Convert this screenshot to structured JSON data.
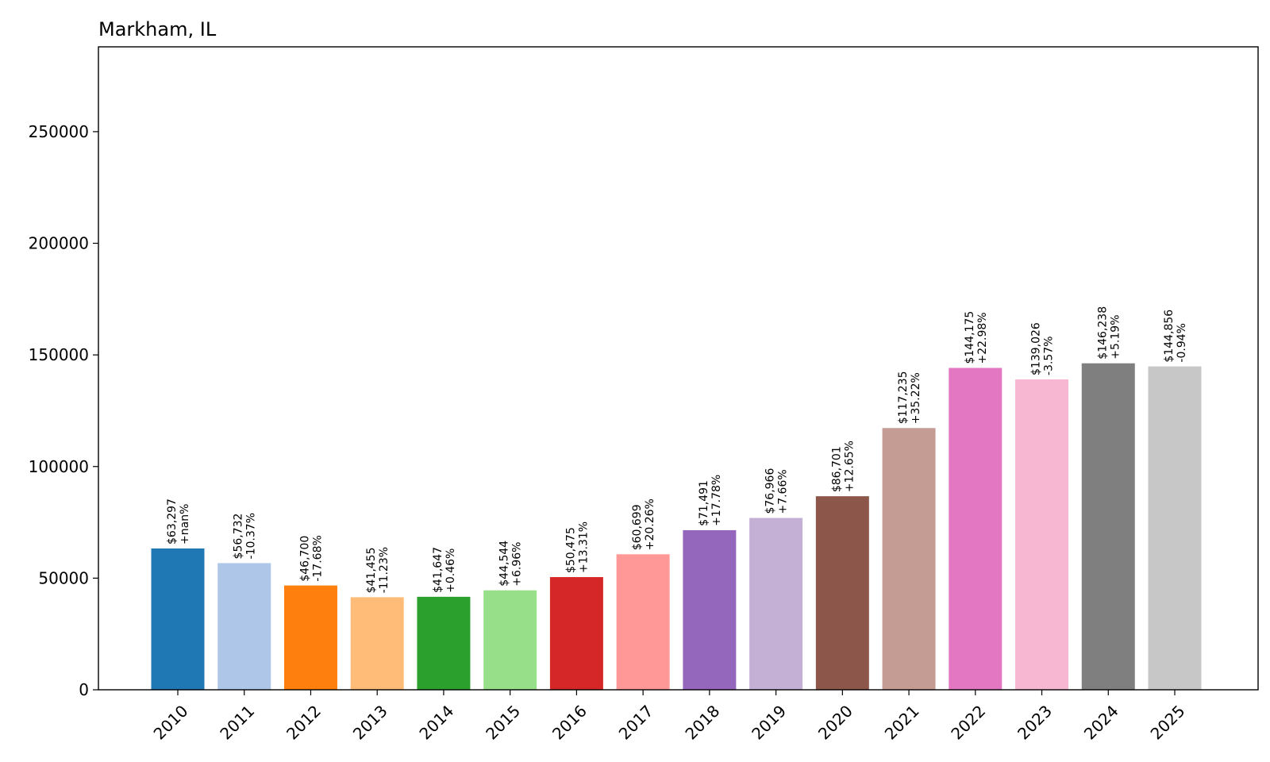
{
  "chart_data": {
    "type": "bar",
    "title": "Markham, IL",
    "xlabel": "",
    "ylabel": "",
    "ylim": [
      0,
      288000
    ],
    "yticks": [
      0,
      50000,
      100000,
      150000,
      200000,
      250000
    ],
    "ytick_labels": [
      "0",
      "50000",
      "100000",
      "150000",
      "200000",
      "250000"
    ],
    "grid": false,
    "categories": [
      "2010",
      "2011",
      "2012",
      "2013",
      "2014",
      "2015",
      "2016",
      "2017",
      "2018",
      "2019",
      "2020",
      "2021",
      "2022",
      "2023",
      "2024",
      "2025"
    ],
    "values": [
      63297,
      56732,
      46700,
      41455,
      41647,
      44544,
      50475,
      60699,
      71491,
      76966,
      86701,
      117235,
      144175,
      139026,
      146238,
      144856
    ],
    "value_labels": [
      "$63,297",
      "$56,732",
      "$46,700",
      "$41,455",
      "$41,647",
      "$44,544",
      "$50,475",
      "$60,699",
      "$71,491",
      "$76,966",
      "$86,701",
      "$117,235",
      "$144,175",
      "$139,026",
      "$146,238",
      "$144,856"
    ],
    "change_labels": [
      "+nan%",
      "-10.37%",
      "-17.68%",
      "-11.23%",
      "+0.46%",
      "+6.96%",
      "+13.31%",
      "+20.26%",
      "+17.78%",
      "+7.66%",
      "+12.65%",
      "+35.22%",
      "+22.98%",
      "-3.57%",
      "+5.19%",
      "-0.94%"
    ],
    "colors": [
      "#1f77b4",
      "#aec7e8",
      "#ff7f0e",
      "#ffbb78",
      "#2ca02c",
      "#98df8a",
      "#d62728",
      "#ff9896",
      "#9467bd",
      "#c5b0d5",
      "#8c564b",
      "#c49c94",
      "#e377c2",
      "#f7b6d2",
      "#7f7f7f",
      "#c7c7c7"
    ]
  }
}
